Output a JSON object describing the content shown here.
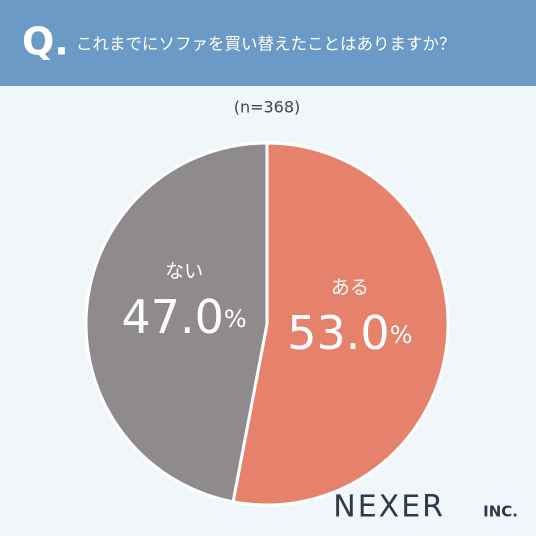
{
  "chart_data": {
    "type": "pie",
    "question_mark": "Q.",
    "title": "これまでにソファを買い替えたことはありますか？",
    "subtitle": "(n=368)",
    "categories": [
      "ある",
      "ない"
    ],
    "values": [
      53.0,
      47.0
    ],
    "value_labels": [
      "53.0%",
      "47.0%"
    ],
    "colors": [
      "#e6826b",
      "#8f8b8c"
    ],
    "brand": "NEXER",
    "brand_suffix": "INC."
  }
}
